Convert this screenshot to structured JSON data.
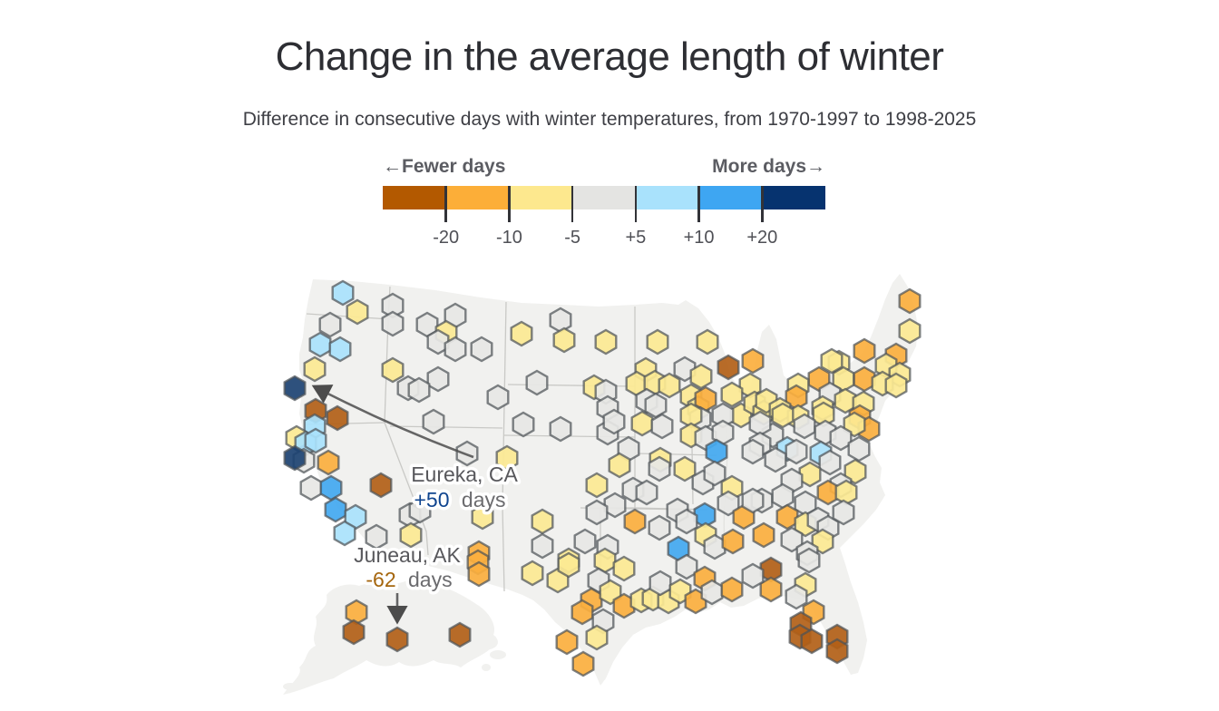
{
  "header": {
    "title": "Change in the average length of winter",
    "subtitle": "Difference in consecutive days with winter temperatures, from 1970-1997 to 1998-2025"
  },
  "legend": {
    "left_label": "←Fewer days",
    "right_label": "More days→",
    "colors": [
      "#b35900",
      "#fcae38",
      "#fde88e",
      "#e4e4e2",
      "#a9e2fc",
      "#3ea6f2",
      "#06336f"
    ],
    "ticks": [
      "-20",
      "-10",
      "-5",
      "+5",
      "+10",
      "+20"
    ]
  },
  "annotations": [
    {
      "city": "Eureka, CA",
      "value": "+50",
      "unit": "days",
      "value_color": "#10458f"
    },
    {
      "city": "Juneau, AK",
      "value": "-62",
      "unit": "days",
      "value_color": "#a5660e"
    }
  ],
  "map": {
    "palette": {
      "B": "#b25f17",
      "O": "#fbaf3e",
      "Y": "#fce992",
      "G": "#e7e7e5",
      "L": "#a9e2fc",
      "U": "#42a8f0",
      "N": "#1c4272"
    },
    "hexes": [
      [
        378,
        323,
        "L"
      ],
      [
        394,
        344,
        "Y"
      ],
      [
        364,
        358,
        "G"
      ],
      [
        433,
        337,
        "G"
      ],
      [
        433,
        357,
        "G"
      ],
      [
        353,
        380,
        "L"
      ],
      [
        375,
        385,
        "L"
      ],
      [
        471,
        358,
        "G"
      ],
      [
        502,
        348,
        "G"
      ],
      [
        492,
        367,
        "Y"
      ],
      [
        483,
        377,
        "G"
      ],
      [
        502,
        385,
        "G"
      ],
      [
        531,
        385,
        "G"
      ],
      [
        347,
        407,
        "Y"
      ],
      [
        433,
        408,
        "Y"
      ],
      [
        483,
        418,
        "G"
      ],
      [
        450,
        428,
        "G"
      ],
      [
        462,
        430,
        "G"
      ],
      [
        549,
        438,
        "G"
      ],
      [
        575,
        368,
        "Y"
      ],
      [
        325,
        428,
        "N"
      ],
      [
        348,
        453,
        "B"
      ],
      [
        372,
        461,
        "B"
      ],
      [
        347,
        470,
        "L"
      ],
      [
        327,
        483,
        "Y"
      ],
      [
        337,
        489,
        "L"
      ],
      [
        348,
        486,
        "L"
      ],
      [
        335,
        508,
        "G"
      ],
      [
        325,
        505,
        "N"
      ],
      [
        362,
        510,
        "O"
      ],
      [
        343,
        538,
        "G"
      ],
      [
        365,
        538,
        "U"
      ],
      [
        370,
        562,
        "U"
      ],
      [
        392,
        570,
        "L"
      ],
      [
        380,
        588,
        "L"
      ],
      [
        420,
        535,
        "B"
      ],
      [
        452,
        568,
        "G"
      ],
      [
        463,
        563,
        "G"
      ],
      [
        453,
        590,
        "Y"
      ],
      [
        415,
        592,
        "G"
      ],
      [
        478,
        465,
        "G"
      ],
      [
        515,
        500,
        "G"
      ],
      [
        532,
        570,
        "Y"
      ],
      [
        559,
        505,
        "Y"
      ],
      [
        528,
        610,
        "O"
      ],
      [
        618,
        353,
        "G"
      ],
      [
        622,
        375,
        "Y"
      ],
      [
        668,
        377,
        "Y"
      ],
      [
        725,
        377,
        "Y"
      ],
      [
        780,
        377,
        "Y"
      ],
      [
        592,
        422,
        "G"
      ],
      [
        712,
        408,
        "Y"
      ],
      [
        755,
        407,
        "G"
      ],
      [
        773,
        415,
        "Y"
      ],
      [
        655,
        427,
        "Y"
      ],
      [
        668,
        432,
        "G"
      ],
      [
        702,
        423,
        "Y"
      ],
      [
        722,
        422,
        "Y"
      ],
      [
        738,
        425,
        "Y"
      ],
      [
        713,
        442,
        "G"
      ],
      [
        762,
        437,
        "Y"
      ],
      [
        770,
        450,
        "Y"
      ],
      [
        670,
        450,
        "G"
      ],
      [
        723,
        447,
        "G"
      ],
      [
        803,
        405,
        "B"
      ],
      [
        830,
        398,
        "O"
      ],
      [
        827,
        425,
        "Y"
      ],
      [
        807,
        435,
        "Y"
      ],
      [
        778,
        440,
        "O"
      ],
      [
        817,
        458,
        "Y"
      ],
      [
        797,
        458,
        "G"
      ],
      [
        832,
        445,
        "Y"
      ],
      [
        842,
        455,
        "Y"
      ],
      [
        772,
        462,
        "G"
      ],
      [
        1003,
        332,
        "O"
      ],
      [
        1003,
        365,
        "Y"
      ],
      [
        953,
        387,
        "O"
      ],
      [
        988,
        392,
        "O"
      ],
      [
        925,
        400,
        "Y"
      ],
      [
        977,
        403,
        "Y"
      ],
      [
        903,
        418,
        "O"
      ],
      [
        930,
        418,
        "Y"
      ],
      [
        953,
        418,
        "O"
      ],
      [
        992,
        413,
        "Y"
      ],
      [
        973,
        423,
        "Y"
      ],
      [
        988,
        425,
        "Y"
      ],
      [
        917,
        398,
        "Y"
      ],
      [
        915,
        435,
        "G"
      ],
      [
        880,
        425,
        "Y"
      ],
      [
        878,
        438,
        "O"
      ],
      [
        845,
        442,
        "Y"
      ],
      [
        907,
        450,
        "Y"
      ],
      [
        932,
        442,
        "Y"
      ],
      [
        952,
        445,
        "Y"
      ],
      [
        860,
        452,
        "Y"
      ],
      [
        880,
        460,
        "Y"
      ],
      [
        577,
        468,
        "G"
      ],
      [
        618,
        473,
        "G"
      ],
      [
        670,
        477,
        "G"
      ],
      [
        677,
        465,
        "G"
      ],
      [
        708,
        467,
        "Y"
      ],
      [
        730,
        470,
        "G"
      ],
      [
        762,
        458,
        "Y"
      ],
      [
        762,
        480,
        "Y"
      ],
      [
        778,
        483,
        "G"
      ],
      [
        797,
        477,
        "G"
      ],
      [
        790,
        498,
        "U"
      ],
      [
        693,
        495,
        "G"
      ],
      [
        683,
        513,
        "Y"
      ],
      [
        728,
        507,
        "Y"
      ],
      [
        727,
        517,
        "G"
      ],
      [
        755,
        517,
        "Y"
      ],
      [
        775,
        532,
        "G"
      ],
      [
        788,
        522,
        "G"
      ],
      [
        807,
        538,
        "Y"
      ],
      [
        803,
        555,
        "G"
      ],
      [
        658,
        535,
        "Y"
      ],
      [
        698,
        540,
        "G"
      ],
      [
        713,
        543,
        "G"
      ],
      [
        678,
        557,
        "G"
      ],
      [
        658,
        565,
        "G"
      ],
      [
        700,
        575,
        "O"
      ],
      [
        727,
        582,
        "G"
      ],
      [
        747,
        563,
        "G"
      ],
      [
        777,
        568,
        "U"
      ],
      [
        757,
        575,
        "G"
      ],
      [
        778,
        590,
        "Y"
      ],
      [
        598,
        575,
        "Y"
      ],
      [
        598,
        602,
        "G"
      ],
      [
        645,
        597,
        "G"
      ],
      [
        670,
        603,
        "G"
      ],
      [
        748,
        605,
        "U"
      ],
      [
        788,
        603,
        "G"
      ],
      [
        808,
        597,
        "O"
      ],
      [
        820,
        570,
        "O"
      ],
      [
        627,
        618,
        "Y"
      ],
      [
        863,
        458,
        "Y"
      ],
      [
        908,
        457,
        "Y"
      ],
      [
        948,
        460,
        "O"
      ],
      [
        958,
        473,
        "O"
      ],
      [
        942,
        468,
        "Y"
      ],
      [
        887,
        470,
        "G"
      ],
      [
        852,
        480,
        "G"
      ],
      [
        838,
        467,
        "G"
      ],
      [
        910,
        477,
        "G"
      ],
      [
        927,
        483,
        "G"
      ],
      [
        868,
        495,
        "L"
      ],
      [
        878,
        498,
        "G"
      ],
      [
        905,
        500,
        "L"
      ],
      [
        947,
        495,
        "G"
      ],
      [
        915,
        510,
        "G"
      ],
      [
        855,
        507,
        "G"
      ],
      [
        838,
        490,
        "G"
      ],
      [
        893,
        523,
        "Y"
      ],
      [
        873,
        530,
        "G"
      ],
      [
        943,
        520,
        "Y"
      ],
      [
        927,
        535,
        "G"
      ],
      [
        913,
        543,
        "O"
      ],
      [
        933,
        543,
        "Y"
      ],
      [
        840,
        552,
        "G"
      ],
      [
        863,
        547,
        "G"
      ],
      [
        888,
        555,
        "G"
      ],
      [
        868,
        570,
        "O"
      ],
      [
        888,
        578,
        "Y"
      ],
      [
        902,
        573,
        "G"
      ],
      [
        913,
        582,
        "G"
      ],
      [
        930,
        565,
        "G"
      ],
      [
        842,
        590,
        "O"
      ],
      [
        873,
        595,
        "G"
      ],
      [
        907,
        597,
        "Y"
      ],
      [
        890,
        610,
        "G"
      ],
      [
        830,
        498,
        "G"
      ],
      [
        830,
        552,
        "G"
      ],
      [
        587,
        632,
        "Y"
      ],
      [
        615,
        640,
        "Y"
      ],
      [
        627,
        623,
        "Y"
      ],
      [
        667,
        618,
        "Y"
      ],
      [
        660,
        640,
        "G"
      ],
      [
        688,
        627,
        "Y"
      ],
      [
        652,
        662,
        "O"
      ],
      [
        673,
        653,
        "Y"
      ],
      [
        642,
        675,
        "O"
      ],
      [
        688,
        668,
        "O"
      ],
      [
        707,
        662,
        "Y"
      ],
      [
        720,
        660,
        "Y"
      ],
      [
        737,
        663,
        "Y"
      ],
      [
        728,
        643,
        "G"
      ],
      [
        757,
        625,
        "G"
      ],
      [
        750,
        652,
        "Y"
      ],
      [
        767,
        663,
        "O"
      ],
      [
        777,
        638,
        "O"
      ],
      [
        785,
        653,
        "G"
      ],
      [
        807,
        650,
        "O"
      ],
      [
        665,
        685,
        "G"
      ],
      [
        658,
        703,
        "Y"
      ],
      [
        625,
        708,
        "O"
      ],
      [
        643,
        732,
        "O"
      ],
      [
        527,
        620,
        "O"
      ],
      [
        528,
        633,
        "O"
      ],
      [
        850,
        628,
        "B"
      ],
      [
        850,
        650,
        "O"
      ],
      [
        888,
        645,
        "Y"
      ],
      [
        878,
        658,
        "G"
      ],
      [
        892,
        618,
        "G"
      ],
      [
        897,
        675,
        "O"
      ],
      [
        883,
        688,
        "B"
      ],
      [
        882,
        702,
        "B"
      ],
      [
        895,
        707,
        "B"
      ],
      [
        923,
        702,
        "B"
      ],
      [
        923,
        718,
        "B"
      ],
      [
        830,
        635,
        "G"
      ],
      [
        393,
        675,
        "O"
      ],
      [
        390,
        697,
        "B"
      ],
      [
        438,
        705,
        "B"
      ],
      [
        507,
        700,
        "B"
      ]
    ]
  }
}
